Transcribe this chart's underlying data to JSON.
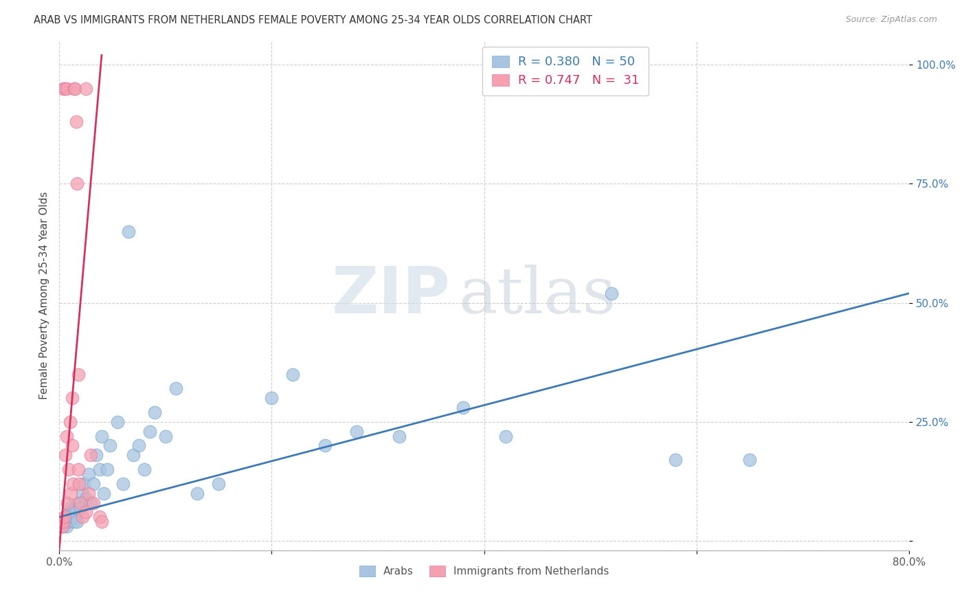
{
  "title": "ARAB VS IMMIGRANTS FROM NETHERLANDS FEMALE POVERTY AMONG 25-34 YEAR OLDS CORRELATION CHART",
  "source": "Source: ZipAtlas.com",
  "ylabel": "Female Poverty Among 25-34 Year Olds",
  "xlim": [
    0,
    0.8
  ],
  "ylim": [
    -0.02,
    1.05
  ],
  "blue_R": 0.38,
  "blue_N": 50,
  "pink_R": 0.747,
  "pink_N": 31,
  "blue_color": "#a8c4e0",
  "pink_color": "#f4a0b0",
  "blue_line_color": "#3d7ab5",
  "pink_line_color": "#d63060",
  "watermark_zip": "ZIP",
  "watermark_atlas": "atlas",
  "legend_label_blue": "Arabs",
  "legend_label_pink": "Immigrants from Netherlands",
  "blue_scatter_x": [
    0.003,
    0.005,
    0.006,
    0.007,
    0.008,
    0.009,
    0.01,
    0.01,
    0.012,
    0.013,
    0.014,
    0.015,
    0.015,
    0.017,
    0.018,
    0.02,
    0.022,
    0.023,
    0.025,
    0.028,
    0.03,
    0.032,
    0.035,
    0.038,
    0.04,
    0.042,
    0.045,
    0.048,
    0.055,
    0.06,
    0.065,
    0.07,
    0.075,
    0.08,
    0.085,
    0.09,
    0.1,
    0.11,
    0.13,
    0.15,
    0.2,
    0.22,
    0.25,
    0.28,
    0.32,
    0.38,
    0.42,
    0.52,
    0.58,
    0.65
  ],
  "blue_scatter_y": [
    0.03,
    0.04,
    0.05,
    0.03,
    0.05,
    0.04,
    0.06,
    0.07,
    0.05,
    0.06,
    0.04,
    0.05,
    0.07,
    0.04,
    0.08,
    0.07,
    0.1,
    0.12,
    0.09,
    0.14,
    0.08,
    0.12,
    0.18,
    0.15,
    0.22,
    0.1,
    0.15,
    0.2,
    0.25,
    0.12,
    0.65,
    0.18,
    0.2,
    0.15,
    0.23,
    0.27,
    0.22,
    0.32,
    0.1,
    0.12,
    0.3,
    0.35,
    0.2,
    0.23,
    0.22,
    0.28,
    0.22,
    0.52,
    0.17,
    0.17
  ],
  "pink_scatter_x": [
    0.003,
    0.004,
    0.004,
    0.005,
    0.005,
    0.006,
    0.007,
    0.007,
    0.008,
    0.009,
    0.01,
    0.011,
    0.012,
    0.012,
    0.013,
    0.014,
    0.015,
    0.016,
    0.017,
    0.018,
    0.018,
    0.019,
    0.02,
    0.022,
    0.025,
    0.025,
    0.028,
    0.03,
    0.032,
    0.038,
    0.04
  ],
  "pink_scatter_y": [
    0.03,
    0.04,
    0.95,
    0.05,
    0.95,
    0.18,
    0.22,
    0.95,
    0.08,
    0.15,
    0.25,
    0.1,
    0.2,
    0.3,
    0.12,
    0.95,
    0.95,
    0.88,
    0.75,
    0.35,
    0.15,
    0.12,
    0.08,
    0.05,
    0.06,
    0.95,
    0.1,
    0.18,
    0.08,
    0.05,
    0.04
  ],
  "blue_regline_x": [
    0.0,
    0.8
  ],
  "blue_regline_y": [
    0.05,
    0.52
  ],
  "pink_regline_x": [
    0.0,
    0.04
  ],
  "pink_regline_y": [
    -0.02,
    1.02
  ]
}
